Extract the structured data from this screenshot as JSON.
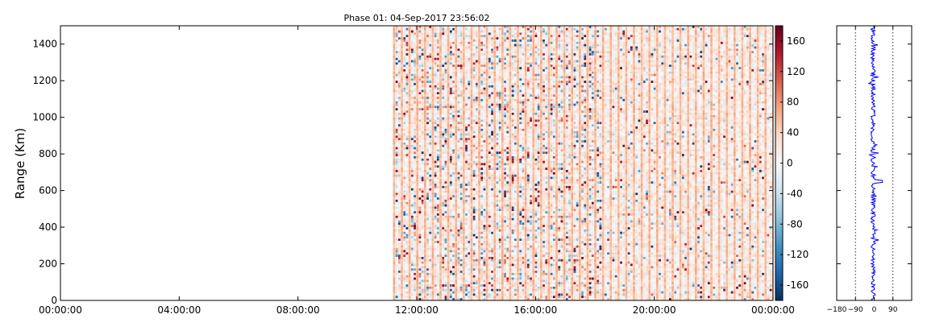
{
  "chart_data": [
    {
      "type": "heatmap",
      "title": "Phase 01: 04-Sep-2017 23:56:02",
      "xlabel": "",
      "ylabel": "Range (Km)",
      "x_ticks": [
        "00:00:00",
        "04:00:00",
        "08:00:00",
        "12:00:00",
        "16:00:00",
        "20:00:00",
        "00:00:00"
      ],
      "x_range_hours": [
        0,
        24
      ],
      "y_ticks": [
        0,
        200,
        400,
        600,
        800,
        1000,
        1200,
        1400
      ],
      "ylim": [
        0,
        1500
      ],
      "data_start_hour": 11.2,
      "data_end_hour": 24,
      "colormap": "diverging blue-white-red (RdBu_r)",
      "colorbar": {
        "ticks": [
          160,
          120,
          80,
          40,
          0,
          -40,
          -80,
          -120,
          -160
        ],
        "range": [
          -180,
          180
        ],
        "colors": [
          "#053061",
          "#2166ac",
          "#4393c3",
          "#92c5de",
          "#d1e5f0",
          "#f7f7f7",
          "#fddbc7",
          "#f4a582",
          "#d6604d",
          "#b2182b",
          "#67001f"
        ]
      },
      "grid": false
    },
    {
      "type": "line",
      "title": "",
      "x_ticks": [
        -180,
        -90,
        0,
        90
      ],
      "xlim": [
        -180,
        180
      ],
      "ylim": [
        0,
        1500
      ],
      "reference_lines": [
        -90,
        90
      ],
      "series_color": "#0000ff",
      "grid": false
    }
  ]
}
